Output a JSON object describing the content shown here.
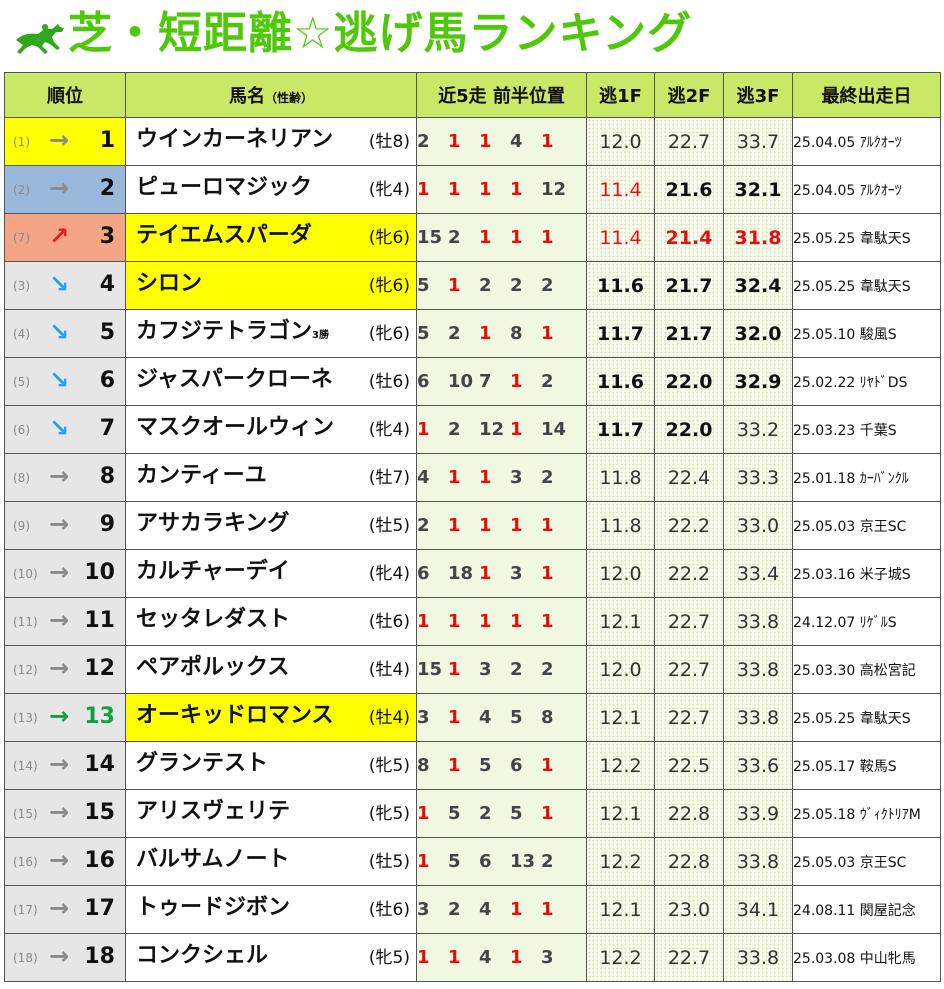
{
  "title": "芝・短距離☆逃げ馬ランキング",
  "colors": {
    "title_green": "#4fc80a",
    "header_bg": "#c9e866",
    "highlight_yellow": "#ffff00",
    "rank1_bg": "#ffff00",
    "rank2_bg": "#9ab8dc",
    "rank3_bg": "#f4a585",
    "red": "#e01010",
    "up_arrow": "#e02020",
    "down_arrow": "#18a8e8",
    "flat_arrow": "#8a8a8a",
    "new_arrow": "#10a040"
  },
  "columns": {
    "rank": "順位",
    "name": "馬名",
    "name_sub": "（性齢）",
    "positions": "近5走 前半位置",
    "f1": "逃1F",
    "f2": "逃2F",
    "f3": "逃3F",
    "last_race": "最終出走日"
  },
  "rows": [
    {
      "prev": "(1)",
      "arrow": "→",
      "arrow_type": "flat",
      "rank": "1",
      "rank_bg": "#ffff00",
      "name": "ウインカーネリアン",
      "tag": "",
      "name_hl": false,
      "sexage": "(牡8)",
      "pos": [
        {
          "v": "2",
          "r": false
        },
        {
          "v": "1",
          "r": true
        },
        {
          "v": "1",
          "r": true
        },
        {
          "v": "4",
          "r": false
        },
        {
          "v": "1",
          "r": true
        }
      ],
      "f1": "12.0",
      "f1s": "",
      "f2": "22.7",
      "f2s": "",
      "f3": "33.7",
      "f3s": "",
      "race": "25.04.05 ｱﾙｸｵｰﾂ"
    },
    {
      "prev": "(2)",
      "arrow": "→",
      "arrow_type": "flat",
      "rank": "2",
      "rank_bg": "#9ab8dc",
      "name": "ピューロマジック",
      "tag": "",
      "name_hl": false,
      "sexage": "(牝4)",
      "pos": [
        {
          "v": "1",
          "r": true
        },
        {
          "v": "1",
          "r": true
        },
        {
          "v": "1",
          "r": true
        },
        {
          "v": "1",
          "r": true
        },
        {
          "v": "12",
          "r": false
        }
      ],
      "f1": "11.4",
      "f1s": "red",
      "f2": "21.6",
      "f2s": "bold",
      "f3": "32.1",
      "f3s": "bold",
      "race": "25.04.05 ｱﾙｸｵｰﾂ"
    },
    {
      "prev": "(7)",
      "arrow": "↗",
      "arrow_type": "up",
      "rank": "3",
      "rank_bg": "#f4a585",
      "name": "テイエムスパーダ",
      "tag": "",
      "name_hl": true,
      "sexage": "(牝6)",
      "pos": [
        {
          "v": "15",
          "r": false
        },
        {
          "v": "2",
          "r": false
        },
        {
          "v": "1",
          "r": true
        },
        {
          "v": "1",
          "r": true
        },
        {
          "v": "1",
          "r": true
        }
      ],
      "f1": "11.4",
      "f1s": "red",
      "f2": "21.4",
      "f2s": "red",
      "f3": "31.8",
      "f3s": "red",
      "race": "25.05.25 韋駄天S"
    },
    {
      "prev": "(3)",
      "arrow": "↘",
      "arrow_type": "down",
      "rank": "4",
      "rank_bg": "",
      "name": "シロン",
      "tag": "",
      "name_hl": true,
      "sexage": "(牝6)",
      "pos": [
        {
          "v": "5",
          "r": false
        },
        {
          "v": "1",
          "r": true
        },
        {
          "v": "2",
          "r": false
        },
        {
          "v": "2",
          "r": false
        },
        {
          "v": "2",
          "r": false
        }
      ],
      "f1": "11.6",
      "f1s": "bold",
      "f2": "21.7",
      "f2s": "bold",
      "f3": "32.4",
      "f3s": "bold",
      "race": "25.05.25 韋駄天S"
    },
    {
      "prev": "(4)",
      "arrow": "↘",
      "arrow_type": "down",
      "rank": "5",
      "rank_bg": "",
      "name": "カフジテトラゴン",
      "tag": "3勝",
      "name_hl": false,
      "sexage": "(牝6)",
      "pos": [
        {
          "v": "5",
          "r": false
        },
        {
          "v": "2",
          "r": false
        },
        {
          "v": "1",
          "r": true
        },
        {
          "v": "8",
          "r": false
        },
        {
          "v": "1",
          "r": true
        }
      ],
      "f1": "11.7",
      "f1s": "bold",
      "f2": "21.7",
      "f2s": "bold",
      "f3": "32.0",
      "f3s": "bold",
      "race": "25.05.10 駿風S"
    },
    {
      "prev": "(5)",
      "arrow": "↘",
      "arrow_type": "down",
      "rank": "6",
      "rank_bg": "",
      "name": "ジャスパークローネ",
      "tag": "",
      "name_hl": false,
      "sexage": "(牡6)",
      "pos": [
        {
          "v": "6",
          "r": false
        },
        {
          "v": "10",
          "r": false
        },
        {
          "v": "7",
          "r": false
        },
        {
          "v": "1",
          "r": true
        },
        {
          "v": "2",
          "r": false
        }
      ],
      "f1": "11.6",
      "f1s": "bold",
      "f2": "22.0",
      "f2s": "bold",
      "f3": "32.9",
      "f3s": "bold",
      "race": "25.02.22 ﾘﾔﾄﾞDS"
    },
    {
      "prev": "(6)",
      "arrow": "↘",
      "arrow_type": "down",
      "rank": "7",
      "rank_bg": "",
      "name": "マスクオールウィン",
      "tag": "",
      "name_hl": false,
      "sexage": "(牝4)",
      "pos": [
        {
          "v": "1",
          "r": true
        },
        {
          "v": "2",
          "r": false
        },
        {
          "v": "12",
          "r": false
        },
        {
          "v": "1",
          "r": true
        },
        {
          "v": "14",
          "r": false
        }
      ],
      "f1": "11.7",
      "f1s": "bold",
      "f2": "22.0",
      "f2s": "bold",
      "f3": "33.2",
      "f3s": "",
      "race": "25.03.23 千葉S"
    },
    {
      "prev": "(8)",
      "arrow": "→",
      "arrow_type": "flat",
      "rank": "8",
      "rank_bg": "",
      "name": "カンティーユ",
      "tag": "",
      "name_hl": false,
      "sexage": "(牡7)",
      "pos": [
        {
          "v": "4",
          "r": false
        },
        {
          "v": "1",
          "r": true
        },
        {
          "v": "1",
          "r": true
        },
        {
          "v": "3",
          "r": false
        },
        {
          "v": "2",
          "r": false
        }
      ],
      "f1": "11.8",
      "f1s": "",
      "f2": "22.4",
      "f2s": "",
      "f3": "33.3",
      "f3s": "",
      "race": "25.01.18 ｶｰﾊﾞﾝｸﾙ"
    },
    {
      "prev": "(9)",
      "arrow": "→",
      "arrow_type": "flat",
      "rank": "9",
      "rank_bg": "",
      "name": "アサカラキング",
      "tag": "",
      "name_hl": false,
      "sexage": "(牡5)",
      "pos": [
        {
          "v": "2",
          "r": false
        },
        {
          "v": "1",
          "r": true
        },
        {
          "v": "1",
          "r": true
        },
        {
          "v": "1",
          "r": true
        },
        {
          "v": "1",
          "r": true
        }
      ],
      "f1": "11.8",
      "f1s": "",
      "f2": "22.2",
      "f2s": "",
      "f3": "33.0",
      "f3s": "",
      "race": "25.05.03 京王SC"
    },
    {
      "prev": "(10)",
      "arrow": "→",
      "arrow_type": "flat",
      "rank": "10",
      "rank_bg": "",
      "name": "カルチャーデイ",
      "tag": "",
      "name_hl": false,
      "sexage": "(牝4)",
      "pos": [
        {
          "v": "6",
          "r": false
        },
        {
          "v": "18",
          "r": false
        },
        {
          "v": "1",
          "r": true
        },
        {
          "v": "3",
          "r": false
        },
        {
          "v": "1",
          "r": true
        }
      ],
      "f1": "12.0",
      "f1s": "",
      "f2": "22.2",
      "f2s": "",
      "f3": "33.4",
      "f3s": "",
      "race": "25.03.16 米子城S"
    },
    {
      "prev": "(11)",
      "arrow": "→",
      "arrow_type": "flat",
      "rank": "11",
      "rank_bg": "",
      "name": "セッタレダスト",
      "tag": "",
      "name_hl": false,
      "sexage": "(牡6)",
      "pos": [
        {
          "v": "1",
          "r": true
        },
        {
          "v": "1",
          "r": true
        },
        {
          "v": "1",
          "r": true
        },
        {
          "v": "1",
          "r": true
        },
        {
          "v": "1",
          "r": true
        }
      ],
      "f1": "12.1",
      "f1s": "",
      "f2": "22.7",
      "f2s": "",
      "f3": "33.8",
      "f3s": "",
      "race": "24.12.07 ﾘｹﾞﾙS"
    },
    {
      "prev": "(12)",
      "arrow": "→",
      "arrow_type": "flat",
      "rank": "12",
      "rank_bg": "",
      "name": "ペアポルックス",
      "tag": "",
      "name_hl": false,
      "sexage": "(牡4)",
      "pos": [
        {
          "v": "15",
          "r": false
        },
        {
          "v": "1",
          "r": true
        },
        {
          "v": "3",
          "r": false
        },
        {
          "v": "2",
          "r": false
        },
        {
          "v": "2",
          "r": false
        }
      ],
      "f1": "12.0",
      "f1s": "",
      "f2": "22.7",
      "f2s": "",
      "f3": "33.8",
      "f3s": "",
      "race": "25.03.30 高松宮記"
    },
    {
      "prev": "(13)",
      "arrow": "→",
      "arrow_type": "new",
      "rank": "13",
      "rank_bg": "",
      "rank_color": "#10a040",
      "name": "オーキッドロマンス",
      "tag": "",
      "name_hl": true,
      "sexage": "(牡4)",
      "pos": [
        {
          "v": "3",
          "r": false
        },
        {
          "v": "1",
          "r": true
        },
        {
          "v": "4",
          "r": false
        },
        {
          "v": "5",
          "r": false
        },
        {
          "v": "8",
          "r": false
        }
      ],
      "f1": "12.1",
      "f1s": "",
      "f2": "22.7",
      "f2s": "",
      "f3": "33.8",
      "f3s": "",
      "race": "25.05.25 韋駄天S"
    },
    {
      "prev": "(14)",
      "arrow": "→",
      "arrow_type": "flat",
      "rank": "14",
      "rank_bg": "",
      "name": "グランテスト",
      "tag": "",
      "name_hl": false,
      "sexage": "(牝5)",
      "pos": [
        {
          "v": "8",
          "r": false
        },
        {
          "v": "1",
          "r": true
        },
        {
          "v": "5",
          "r": false
        },
        {
          "v": "6",
          "r": false
        },
        {
          "v": "1",
          "r": true
        }
      ],
      "f1": "12.2",
      "f1s": "",
      "f2": "22.5",
      "f2s": "",
      "f3": "33.6",
      "f3s": "",
      "race": "25.05.17 鞍馬S"
    },
    {
      "prev": "(15)",
      "arrow": "→",
      "arrow_type": "flat",
      "rank": "15",
      "rank_bg": "",
      "name": "アリスヴェリテ",
      "tag": "",
      "name_hl": false,
      "sexage": "(牝5)",
      "pos": [
        {
          "v": "1",
          "r": true
        },
        {
          "v": "5",
          "r": false
        },
        {
          "v": "2",
          "r": false
        },
        {
          "v": "5",
          "r": false
        },
        {
          "v": "1",
          "r": true
        }
      ],
      "f1": "12.1",
      "f1s": "",
      "f2": "22.8",
      "f2s": "",
      "f3": "33.9",
      "f3s": "",
      "race": "25.05.18 ｳﾞｨｸﾄﾘｱM"
    },
    {
      "prev": "(16)",
      "arrow": "→",
      "arrow_type": "flat",
      "rank": "16",
      "rank_bg": "",
      "name": "バルサムノート",
      "tag": "",
      "name_hl": false,
      "sexage": "(牡5)",
      "pos": [
        {
          "v": "1",
          "r": true
        },
        {
          "v": "5",
          "r": false
        },
        {
          "v": "6",
          "r": false
        },
        {
          "v": "13",
          "r": false
        },
        {
          "v": "2",
          "r": false
        }
      ],
      "f1": "12.2",
      "f1s": "",
      "f2": "22.8",
      "f2s": "",
      "f3": "33.8",
      "f3s": "",
      "race": "25.05.03 京王SC"
    },
    {
      "prev": "(17)",
      "arrow": "→",
      "arrow_type": "flat",
      "rank": "17",
      "rank_bg": "",
      "name": "トゥードジボン",
      "tag": "",
      "name_hl": false,
      "sexage": "(牡6)",
      "pos": [
        {
          "v": "3",
          "r": false
        },
        {
          "v": "2",
          "r": false
        },
        {
          "v": "4",
          "r": false
        },
        {
          "v": "1",
          "r": true
        },
        {
          "v": "1",
          "r": true
        }
      ],
      "f1": "12.1",
      "f1s": "",
      "f2": "23.0",
      "f2s": "",
      "f3": "34.1",
      "f3s": "",
      "race": "24.08.11 関屋記念"
    },
    {
      "prev": "(18)",
      "arrow": "→",
      "arrow_type": "flat",
      "rank": "18",
      "rank_bg": "",
      "name": "コンクシェル",
      "tag": "",
      "name_hl": false,
      "sexage": "(牝5)",
      "pos": [
        {
          "v": "1",
          "r": true
        },
        {
          "v": "1",
          "r": true
        },
        {
          "v": "4",
          "r": false
        },
        {
          "v": "1",
          "r": true
        },
        {
          "v": "3",
          "r": false
        }
      ],
      "f1": "12.2",
      "f1s": "",
      "f2": "22.7",
      "f2s": "",
      "f3": "33.8",
      "f3s": "",
      "race": "25.03.08 中山牝馬"
    }
  ]
}
